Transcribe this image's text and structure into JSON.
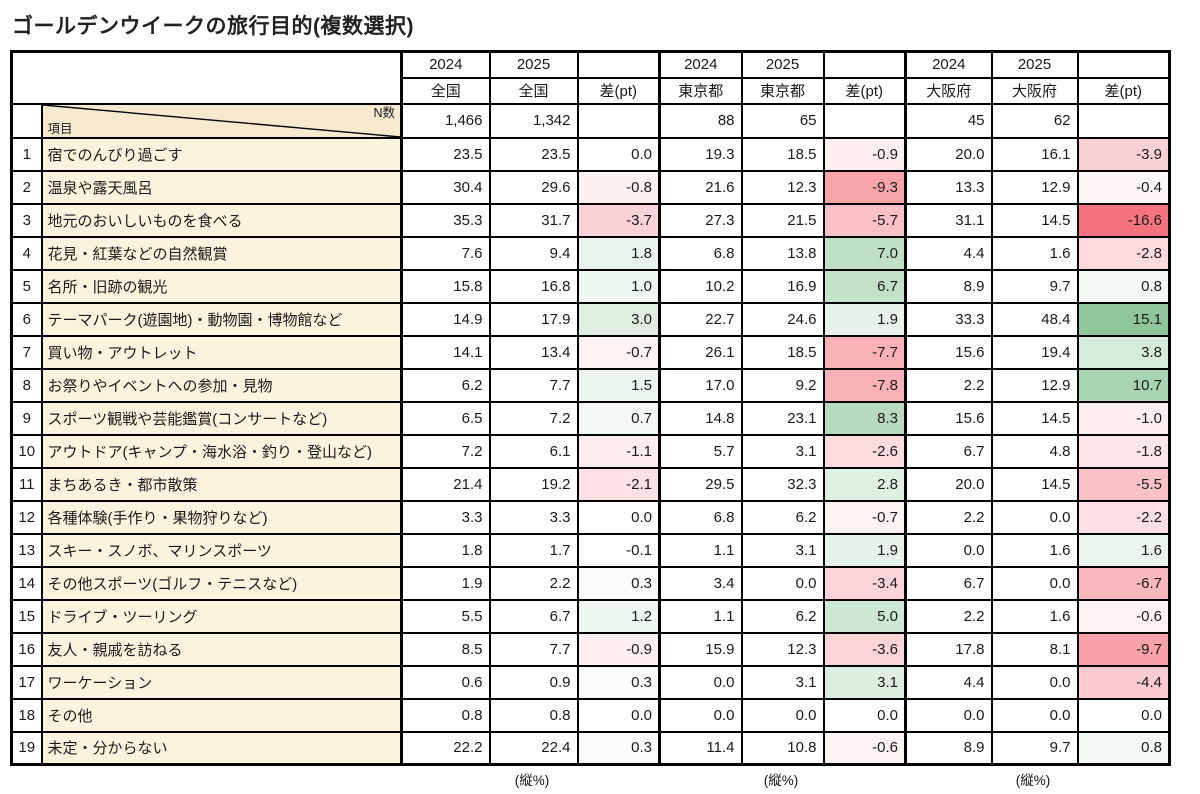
{
  "title": "ゴールデンウイークの旅行目的(複数選択)",
  "header": {
    "years": [
      "2024",
      "2025"
    ],
    "groups": [
      "全国",
      "東京都",
      "大阪府"
    ],
    "diff_label": "差(pt)",
    "item_label": "項目",
    "n_label": "N数"
  },
  "n_row": {
    "values": [
      "1,466",
      "1,342",
      "",
      "88",
      "65",
      "",
      "45",
      "62",
      ""
    ]
  },
  "footnote": "(縦%)",
  "diff_scale": {
    "negative_color": "#f4737e",
    "positive_color": "#8fc79a",
    "negative_max": 16.6,
    "positive_max": 15.1,
    "exponent": 0.75
  },
  "rows": [
    {
      "no": "1",
      "label": "宿でのんびり過ごす",
      "values": [
        "23.5",
        "23.5",
        "0.0",
        "19.3",
        "18.5",
        "-0.9",
        "20.0",
        "16.1",
        "-3.9"
      ]
    },
    {
      "no": "2",
      "label": "温泉や露天風呂",
      "values": [
        "30.4",
        "29.6",
        "-0.8",
        "21.6",
        "12.3",
        "-9.3",
        "13.3",
        "12.9",
        "-0.4"
      ]
    },
    {
      "no": "3",
      "label": "地元のおいしいものを食べる",
      "values": [
        "35.3",
        "31.7",
        "-3.7",
        "27.3",
        "21.5",
        "-5.7",
        "31.1",
        "14.5",
        "-16.6"
      ]
    },
    {
      "no": "4",
      "label": "花見・紅葉などの自然観賞",
      "values": [
        "7.6",
        "9.4",
        "1.8",
        "6.8",
        "13.8",
        "7.0",
        "4.4",
        "1.6",
        "-2.8"
      ]
    },
    {
      "no": "5",
      "label": "名所・旧跡の観光",
      "values": [
        "15.8",
        "16.8",
        "1.0",
        "10.2",
        "16.9",
        "6.7",
        "8.9",
        "9.7",
        "0.8"
      ]
    },
    {
      "no": "6",
      "label": "テーマパーク(遊園地)・動物園・博物館など",
      "values": [
        "14.9",
        "17.9",
        "3.0",
        "22.7",
        "24.6",
        "1.9",
        "33.3",
        "48.4",
        "15.1"
      ]
    },
    {
      "no": "7",
      "label": "買い物・アウトレット",
      "values": [
        "14.1",
        "13.4",
        "-0.7",
        "26.1",
        "18.5",
        "-7.7",
        "15.6",
        "19.4",
        "3.8"
      ]
    },
    {
      "no": "8",
      "label": "お祭りやイベントへの参加・見物",
      "values": [
        "6.2",
        "7.7",
        "1.5",
        "17.0",
        "9.2",
        "-7.8",
        "2.2",
        "12.9",
        "10.7"
      ]
    },
    {
      "no": "9",
      "label": "スポーツ観戦や芸能鑑賞(コンサートなど)",
      "values": [
        "6.5",
        "7.2",
        "0.7",
        "14.8",
        "23.1",
        "8.3",
        "15.6",
        "14.5",
        "-1.0"
      ]
    },
    {
      "no": "10",
      "label": "アウトドア(キャンプ・海水浴・釣り・登山など)",
      "values": [
        "7.2",
        "6.1",
        "-1.1",
        "5.7",
        "3.1",
        "-2.6",
        "6.7",
        "4.8",
        "-1.8"
      ]
    },
    {
      "no": "11",
      "label": "まちあるき・都市散策",
      "values": [
        "21.4",
        "19.2",
        "-2.1",
        "29.5",
        "32.3",
        "2.8",
        "20.0",
        "14.5",
        "-5.5"
      ]
    },
    {
      "no": "12",
      "label": "各種体験(手作り・果物狩りなど)",
      "values": [
        "3.3",
        "3.3",
        "0.0",
        "6.8",
        "6.2",
        "-0.7",
        "2.2",
        "0.0",
        "-2.2"
      ]
    },
    {
      "no": "13",
      "label": "スキー・スノボ、マリンスポーツ",
      "values": [
        "1.8",
        "1.7",
        "-0.1",
        "1.1",
        "3.1",
        "1.9",
        "0.0",
        "1.6",
        "1.6"
      ]
    },
    {
      "no": "14",
      "label": "その他スポーツ(ゴルフ・テニスなど)",
      "values": [
        "1.9",
        "2.2",
        "0.3",
        "3.4",
        "0.0",
        "-3.4",
        "6.7",
        "0.0",
        "-6.7"
      ]
    },
    {
      "no": "15",
      "label": "ドライブ・ツーリング",
      "values": [
        "5.5",
        "6.7",
        "1.2",
        "1.1",
        "6.2",
        "5.0",
        "2.2",
        "1.6",
        "-0.6"
      ]
    },
    {
      "no": "16",
      "label": "友人・親戚を訪ねる",
      "values": [
        "8.5",
        "7.7",
        "-0.9",
        "15.9",
        "12.3",
        "-3.6",
        "17.8",
        "8.1",
        "-9.7"
      ]
    },
    {
      "no": "17",
      "label": "ワーケーション",
      "values": [
        "0.6",
        "0.9",
        "0.3",
        "0.0",
        "3.1",
        "3.1",
        "4.4",
        "0.0",
        "-4.4"
      ]
    },
    {
      "no": "18",
      "label": "その他",
      "values": [
        "0.8",
        "0.8",
        "0.0",
        "0.0",
        "0.0",
        "0.0",
        "0.0",
        "0.0",
        "0.0"
      ]
    },
    {
      "no": "19",
      "label": "未定・分からない",
      "values": [
        "22.2",
        "22.4",
        "0.3",
        "11.4",
        "10.8",
        "-0.6",
        "8.9",
        "9.7",
        "0.8"
      ]
    }
  ]
}
